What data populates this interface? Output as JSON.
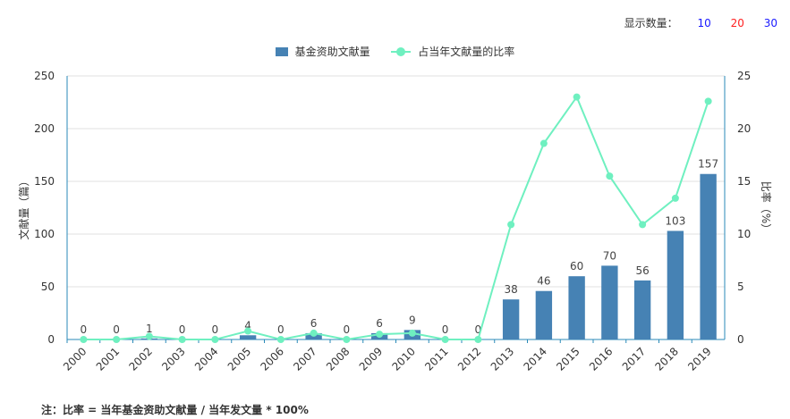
{
  "controls": {
    "display_count_label": "显示数量：",
    "options": [
      "10",
      "20",
      "30"
    ],
    "option_colors": [
      "#1a1aff",
      "#ff2020",
      "#1a1aff"
    ]
  },
  "footnote": "注：比率 = 当年基金资助文献量 / 当年发文量 * 100%",
  "colors": {
    "bar": "#4682b4",
    "line": "#6ff0c0",
    "axis_left": "#2a8ab8",
    "grid": "#e0e0e0"
  },
  "chart_data": {
    "type": "bar",
    "categories": [
      "2000",
      "2001",
      "2002",
      "2003",
      "2004",
      "2005",
      "2006",
      "2007",
      "2008",
      "2009",
      "2010",
      "2011",
      "2012",
      "2013",
      "2014",
      "2015",
      "2016",
      "2017",
      "2018",
      "2019"
    ],
    "series": [
      {
        "name": "基金资助文献量",
        "type": "bar",
        "axis": "left",
        "values": [
          0,
          0,
          1,
          0,
          0,
          4,
          0,
          6,
          0,
          6,
          9,
          0,
          0,
          38,
          46,
          60,
          70,
          56,
          103,
          157
        ]
      },
      {
        "name": "占当年文献量的比率",
        "type": "line",
        "axis": "right",
        "values": [
          0,
          0,
          0.3,
          0,
          0,
          0.8,
          0,
          0.6,
          0,
          0.5,
          0.6,
          0,
          0,
          10.9,
          18.6,
          23.0,
          15.5,
          10.9,
          13.4,
          22.6
        ]
      }
    ],
    "ylabel": "文献量（篇）",
    "y2label": "比率（%）",
    "ylim": [
      0,
      250
    ],
    "y2lim": [
      0,
      25
    ],
    "yticks": [
      "0",
      "50",
      "100",
      "150",
      "200",
      "250"
    ],
    "y2ticks": [
      "0",
      "5",
      "10",
      "15",
      "20",
      "25"
    ],
    "grid": true,
    "legend_position": "top-center"
  }
}
